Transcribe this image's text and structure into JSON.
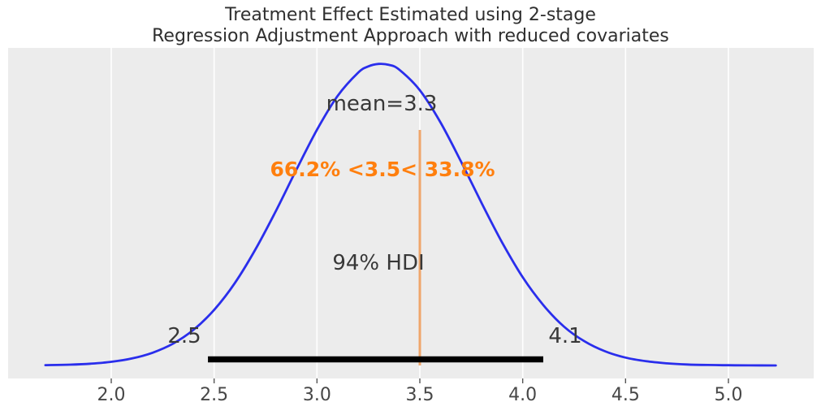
{
  "title": {
    "line1": "Treatment Effect Estimated using 2-stage",
    "line2": "Regression Adjustment Approach with reduced covariates"
  },
  "chart_data": {
    "type": "line",
    "subtype": "kde_posterior_density",
    "title": "Treatment Effect Estimated using 2-stage Regression Adjustment Approach with reduced covariates",
    "xlabel": "",
    "ylabel": "",
    "xlim": [
      1.5,
      5.41
    ],
    "grid": "vertical_white_lines",
    "legend_position": "none",
    "x_ticks": [
      2.0,
      2.5,
      3.0,
      3.5,
      4.0,
      4.5,
      5.0
    ],
    "x_tick_labels": [
      "2.0",
      "2.5",
      "3.0",
      "3.5",
      "4.0",
      "4.5",
      "5.0"
    ],
    "series": [
      {
        "name": "posterior_kde",
        "x": [
          1.68,
          1.8,
          1.9,
          2.0,
          2.1,
          2.2,
          2.3,
          2.4,
          2.5,
          2.6,
          2.7,
          2.8,
          2.9,
          3.0,
          3.1,
          3.2,
          3.25,
          3.3,
          3.35,
          3.4,
          3.5,
          3.6,
          3.7,
          3.8,
          3.9,
          4.0,
          4.1,
          4.2,
          4.3,
          4.4,
          4.5,
          4.6,
          4.7,
          4.8,
          4.9,
          5.0,
          5.1,
          5.23
        ],
        "density": [
          0.0011,
          0.0028,
          0.0059,
          0.012,
          0.023,
          0.042,
          0.072,
          0.118,
          0.184,
          0.272,
          0.383,
          0.511,
          0.648,
          0.78,
          0.892,
          0.969,
          0.99,
          0.998,
          0.995,
          0.979,
          0.911,
          0.805,
          0.675,
          0.538,
          0.407,
          0.292,
          0.2,
          0.129,
          0.08,
          0.047,
          0.026,
          0.014,
          0.007,
          0.0032,
          0.0015,
          0.0007,
          0.0003,
          0.0001
        ]
      }
    ],
    "stats": {
      "mean": 3.3,
      "mean_label": "mean=3.3",
      "ref_value": 3.5,
      "pct_below": "66.2%",
      "pct_above": "33.8%",
      "ref_label": "66.2% <3.5< 33.8%",
      "hdi_prob_label": "94% HDI",
      "hdi_lower": 2.47,
      "hdi_upper": 4.1,
      "hdi_lower_label": "2.5",
      "hdi_upper_label": "4.1"
    }
  },
  "colors": {
    "curve": "#2a2eec",
    "ref_line": "#efa66b",
    "ref_text": "#ff7f0e",
    "hdi_bar": "#000000",
    "axes_bg": "#ececec",
    "grid": "#ffffff",
    "tick_mark": "#555555",
    "text": "#383838",
    "tick_text": "#474747",
    "title_text": "#2f2f2f"
  }
}
